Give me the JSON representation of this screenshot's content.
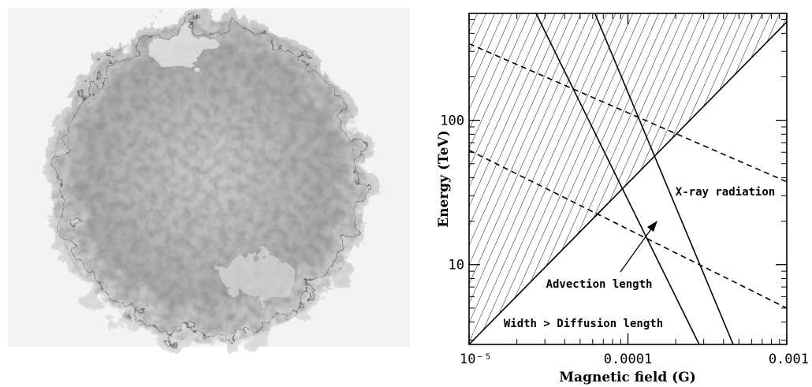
{
  "chart_data": {
    "type": "line",
    "x_label": "Magnetic field (G)",
    "y_label": "Energy (TeV)",
    "log_x": true,
    "log_y": true,
    "xlim": [
      1e-05,
      0.001
    ],
    "ylim": [
      2.8,
      550
    ],
    "xticks": [
      {
        "value": 1e-05,
        "label": "10⁻⁵"
      },
      0.0001,
      0.001
    ],
    "yticks": [
      10,
      100
    ],
    "hatched_region": true,
    "series": [
      {
        "color": "#000000",
        "style": "solid",
        "x": [
          1e-05,
          0.001
        ],
        "values": [
          2.8,
          480
        ]
      },
      {
        "color": "#000000",
        "style": "solid",
        "x": [
          2.64e-05,
          0.000281
        ],
        "values": [
          550,
          2.8
        ]
      },
      {
        "color": "#000000",
        "style": "solid",
        "x": [
          6.2e-05,
          0.00046
        ],
        "values": [
          550,
          2.8
        ]
      },
      {
        "color": "#000000",
        "style": "dashed",
        "x": [
          1e-05,
          0.001
        ],
        "values": [
          339,
          37.5
        ]
      },
      {
        "color": "#000000",
        "style": "dashed",
        "x": [
          1e-05,
          0.001
        ],
        "values": [
          62,
          5.0
        ]
      }
    ],
    "annotations": [
      "X-ray radiation",
      "Advection length",
      "Width > Diffusion length"
    ]
  }
}
